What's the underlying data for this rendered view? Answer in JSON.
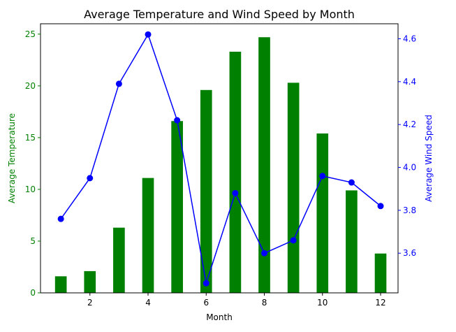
{
  "chart_data": {
    "type": "bar+line",
    "title": "Average Temperature and Wind Speed by Month",
    "xlabel": "Month",
    "x": [
      1,
      2,
      3,
      4,
      5,
      6,
      7,
      8,
      9,
      10,
      11,
      12
    ],
    "xticks": [
      2,
      4,
      6,
      8,
      10,
      12
    ],
    "xlim": [
      0.3,
      12.6
    ],
    "y_left": {
      "label": "Average Temperature",
      "color": "#008000",
      "ylim": [
        0,
        26
      ],
      "ticks": [
        0,
        5,
        10,
        15,
        20,
        25
      ]
    },
    "y_right": {
      "label": "Average Wind Speed",
      "color": "#0000ff",
      "ylim": [
        3.415,
        4.67
      ],
      "ticks": [
        3.6,
        3.8,
        4.0,
        4.2,
        4.4,
        4.6
      ],
      "tick_labels": [
        "3.6",
        "3.8",
        "4.0",
        "4.2",
        "4.4",
        "4.6"
      ]
    },
    "series": [
      {
        "name": "Average Temperature",
        "kind": "bar",
        "axis": "left",
        "color": "#008000",
        "bar_width": 0.4,
        "values": [
          1.6,
          2.1,
          6.3,
          11.1,
          16.6,
          19.6,
          23.3,
          24.7,
          20.3,
          15.4,
          9.9,
          3.8
        ]
      },
      {
        "name": "Average Wind Speed",
        "kind": "line",
        "axis": "right",
        "color": "#0000ff",
        "marker": "circle",
        "values": [
          3.76,
          3.95,
          4.39,
          4.62,
          4.22,
          3.46,
          3.88,
          3.6,
          3.66,
          3.96,
          3.93,
          3.82
        ]
      }
    ],
    "grid": false
  }
}
